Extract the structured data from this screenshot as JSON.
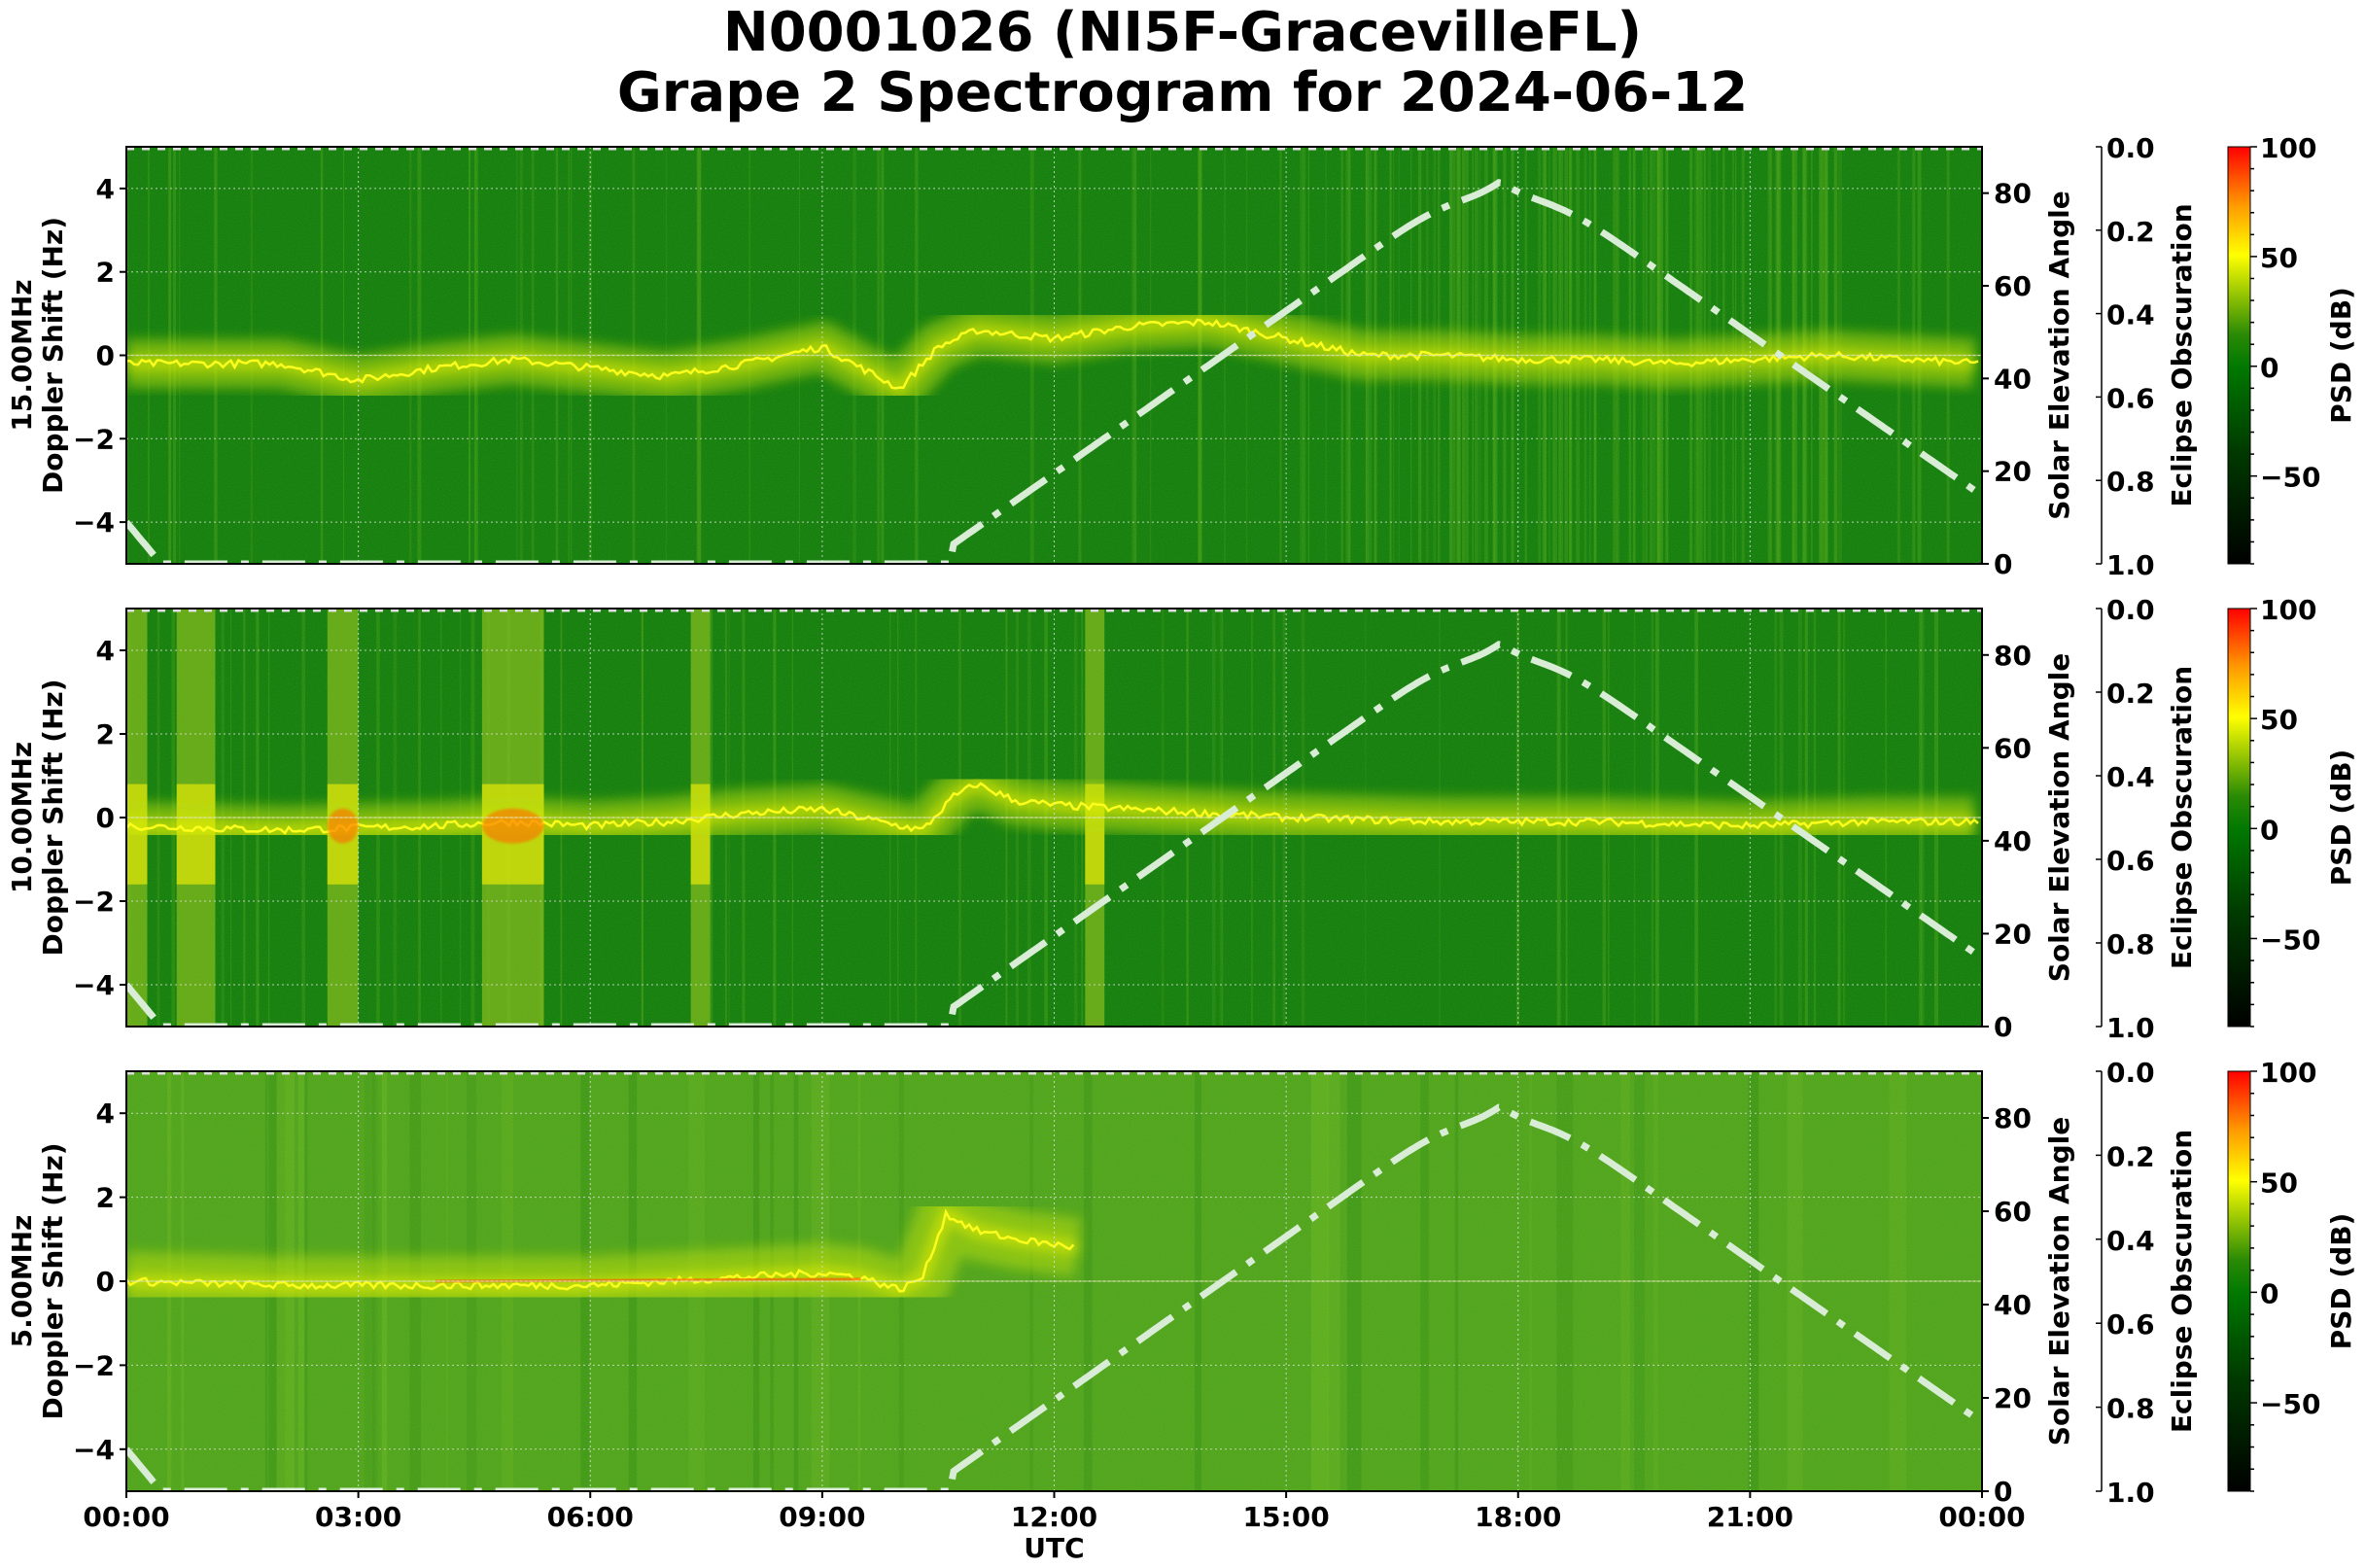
{
  "title": {
    "line1": "N0001026 (NI5F-GracevilleFL)",
    "line2": "Grape 2 Spectrogram for 2024-06-12"
  },
  "x_axis": {
    "label": "UTC",
    "ticks": [
      "00:00",
      "03:00",
      "06:00",
      "09:00",
      "12:00",
      "15:00",
      "18:00",
      "21:00",
      "00:00"
    ]
  },
  "colorbar": {
    "label": "PSD (dB)",
    "ticks": [
      "100",
      "50",
      "0",
      "−50"
    ],
    "range": [
      -90,
      100
    ],
    "colors": [
      "#000000",
      "#006400",
      "#007a00",
      "#ffff00",
      "#ff8000",
      "#ff0000"
    ]
  },
  "solar_axis": {
    "label": "Solar Elevation Angle",
    "ticks": [
      "0",
      "20",
      "40",
      "60",
      "80"
    ]
  },
  "eclipse_axis": {
    "label": "Eclipse Obscuration",
    "ticks": [
      "0.0",
      "0.2",
      "0.4",
      "0.6",
      "0.8",
      "1.0"
    ]
  },
  "doppler_ticks": [
    "4",
    "2",
    "0",
    "−2",
    "−4"
  ],
  "panels": [
    {
      "freq_label": "15.00MHz",
      "ylabel": "Doppler Shift (Hz)",
      "bg": "#0a780a"
    },
    {
      "freq_label": "10.00MHz",
      "ylabel": "Doppler Shift (Hz)",
      "bg": "#0a780a"
    },
    {
      "freq_label": "5.00MHz",
      "ylabel": "Doppler Shift (Hz)",
      "bg": "#4aa01a"
    }
  ],
  "chart_data": [
    {
      "type": "heatmap",
      "title": "N0001026 (NI5F-GracevilleFL) Grape 2 Spectrogram for 2024-06-12",
      "panel": "15.00MHz",
      "xlabel": "UTC",
      "ylabel": "15.00MHz Doppler Shift (Hz)",
      "xlim": [
        "00:00",
        "24:00"
      ],
      "ylim": [
        -5,
        5
      ],
      "y2label": "Solar Elevation Angle",
      "y2lim": [
        0,
        90
      ],
      "y3label": "Eclipse Obscuration",
      "y3lim": [
        1.0,
        0.0
      ],
      "colorbar": {
        "label": "PSD (dB)",
        "range": [
          -90,
          100
        ],
        "ticks": [
          100,
          50,
          0,
          -50
        ]
      },
      "grid": true,
      "doppler_trace_hz": {
        "hours": [
          0,
          1,
          2,
          3,
          4,
          5,
          6,
          7,
          8,
          9,
          9.5,
          10,
          10.5,
          11,
          11.5,
          12,
          13,
          14,
          15,
          16,
          17,
          18,
          19,
          20,
          21,
          22,
          23,
          24
        ],
        "values": [
          -0.2,
          -0.2,
          -0.2,
          -0.6,
          -0.3,
          -0.1,
          -0.3,
          -0.5,
          -0.2,
          0.2,
          -0.3,
          -0.8,
          0.2,
          0.6,
          0.5,
          0.4,
          0.7,
          0.8,
          0.4,
          0.0,
          0.0,
          -0.1,
          -0.1,
          -0.2,
          -0.1,
          0,
          -0.1,
          -0.2
        ]
      },
      "solar_elevation_deg": {
        "hours": [
          0,
          0.4,
          10.67,
          12,
          14,
          16,
          17.77,
          19,
          21,
          23,
          24
        ],
        "values": [
          9,
          0,
          0,
          12,
          38,
          66,
          82.5,
          72,
          46,
          19,
          9
        ]
      }
    },
    {
      "type": "heatmap",
      "panel": "10.00MHz",
      "xlabel": "UTC",
      "ylabel": "10.00MHz Doppler Shift (Hz)",
      "xlim": [
        "00:00",
        "24:00"
      ],
      "ylim": [
        -5,
        5
      ],
      "y2label": "Solar Elevation Angle",
      "y2lim": [
        0,
        90
      ],
      "colorbar": {
        "label": "PSD (dB)",
        "range": [
          -90,
          100
        ],
        "ticks": [
          100,
          50,
          0,
          -50
        ]
      },
      "broadband_bands_hours": [
        [
          0,
          0.27
        ],
        [
          0.65,
          1.15
        ],
        [
          2.6,
          3.0
        ],
        [
          4.6,
          5.4
        ],
        [
          7.3,
          7.55
        ],
        [
          12.4,
          12.65
        ]
      ],
      "doppler_trace_hz": {
        "hours": [
          0,
          2,
          4,
          5,
          6,
          7,
          8,
          9,
          10,
          10.3,
          10.7,
          11,
          11.5,
          12,
          13,
          15,
          17,
          19,
          21,
          22.5,
          24
        ],
        "values": [
          -0.2,
          -0.3,
          -0.2,
          -0.1,
          -0.2,
          -0.1,
          0.1,
          0.2,
          -0.2,
          -0.3,
          0.5,
          0.8,
          0.4,
          0.3,
          0.2,
          0.0,
          -0.1,
          -0.1,
          -0.2,
          -0.1,
          -0.1
        ]
      },
      "solar_elevation_deg": {
        "hours": [
          0,
          0.4,
          10.67,
          12,
          14,
          16,
          17.77,
          19,
          21,
          23,
          24
        ],
        "values": [
          9,
          0,
          0,
          12,
          38,
          66,
          82.5,
          72,
          46,
          19,
          9
        ]
      }
    },
    {
      "type": "heatmap",
      "panel": "5.00MHz",
      "xlabel": "UTC",
      "ylabel": "5.00MHz Doppler Shift (Hz)",
      "xlim": [
        "00:00",
        "24:00"
      ],
      "ylim": [
        -5,
        5
      ],
      "y2label": "Solar Elevation Angle",
      "y2lim": [
        0,
        90
      ],
      "colorbar": {
        "label": "PSD (dB)",
        "range": [
          -90,
          100
        ],
        "ticks": [
          100,
          50,
          0,
          -50
        ]
      },
      "doppler_trace_hz": {
        "hours": [
          0,
          2,
          4,
          6,
          8,
          9,
          9.5,
          10,
          10.3,
          10.6,
          11,
          11.5,
          12.3
        ],
        "values": [
          0,
          -0.1,
          -0.1,
          -0.1,
          0.1,
          0.2,
          0.1,
          -0.2,
          0.1,
          1.6,
          1.2,
          1.0,
          0.8
        ]
      },
      "solar_elevation_deg": {
        "hours": [
          0,
          0.4,
          10.67,
          12,
          14,
          16,
          17.77,
          19,
          21,
          23,
          24
        ],
        "values": [
          9,
          0,
          0,
          12,
          38,
          66,
          82.5,
          72,
          46,
          19,
          9
        ]
      }
    }
  ]
}
